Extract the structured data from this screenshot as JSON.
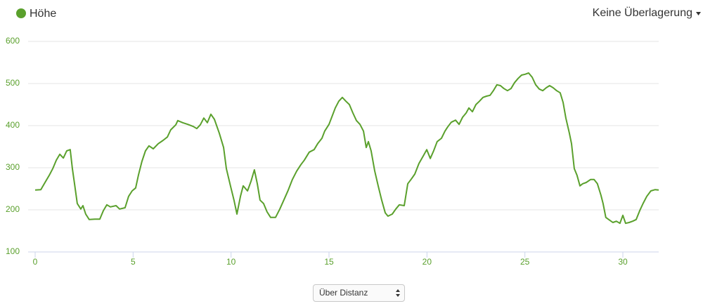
{
  "chart_data": {
    "type": "line",
    "x": [
      0,
      0.29,
      0.54,
      0.72,
      0.9,
      1.08,
      1.26,
      1.44,
      1.61,
      1.79,
      1.9,
      2.01,
      2.15,
      2.33,
      2.44,
      2.58,
      2.76,
      3.05,
      3.3,
      3.48,
      3.66,
      3.84,
      4.13,
      4.31,
      4.59,
      4.77,
      4.95,
      5.13,
      5.27,
      5.45,
      5.63,
      5.81,
      6.03,
      6.28,
      6.53,
      6.75,
      6.92,
      7.18,
      7.28,
      7.53,
      7.79,
      8.07,
      8.25,
      8.43,
      8.61,
      8.79,
      8.97,
      9.15,
      9.4,
      9.62,
      9.76,
      9.97,
      10.15,
      10.3,
      10.48,
      10.62,
      10.84,
      11.02,
      11.19,
      11.34,
      11.48,
      11.66,
      11.84,
      12.02,
      12.27,
      12.49,
      12.74,
      12.92,
      13.13,
      13.35,
      13.56,
      13.74,
      13.99,
      14.24,
      14.42,
      14.64,
      14.78,
      15.0,
      15.14,
      15.32,
      15.5,
      15.68,
      15.86,
      16.04,
      16.22,
      16.4,
      16.58,
      16.76,
      16.9,
      17.01,
      17.15,
      17.33,
      17.51,
      17.69,
      17.87,
      18.01,
      18.23,
      18.41,
      18.59,
      18.84,
      19.02,
      19.2,
      19.38,
      19.59,
      19.81,
      19.99,
      20.17,
      20.34,
      20.52,
      20.74,
      20.92,
      21.06,
      21.24,
      21.46,
      21.64,
      21.82,
      22.0,
      22.14,
      22.32,
      22.5,
      22.68,
      22.86,
      23.04,
      23.22,
      23.39,
      23.57,
      23.75,
      23.93,
      24.11,
      24.29,
      24.47,
      24.65,
      24.83,
      25.01,
      25.19,
      25.37,
      25.55,
      25.73,
      25.91,
      26.09,
      26.26,
      26.44,
      26.62,
      26.8,
      26.95,
      27.09,
      27.27,
      27.38,
      27.52,
      27.66,
      27.81,
      27.95,
      28.13,
      28.35,
      28.53,
      28.7,
      28.88,
      28.99,
      29.13,
      29.28,
      29.49,
      29.67,
      29.85,
      30.0,
      30.14,
      30.32,
      30.5,
      30.68,
      30.86,
      31.03,
      31.22,
      31.43,
      31.65,
      31.83
    ],
    "series": [
      {
        "name": "Höhe",
        "color": "#5aa02c",
        "values": [
          247,
          248,
          268,
          282,
          298,
          318,
          332,
          323,
          340,
          343,
          298,
          262,
          215,
          202,
          210,
          190,
          177,
          178,
          178,
          198,
          212,
          207,
          210,
          202,
          205,
          232,
          245,
          252,
          282,
          315,
          340,
          352,
          345,
          357,
          365,
          373,
          390,
          402,
          412,
          407,
          403,
          398,
          393,
          402,
          418,
          407,
          427,
          415,
          382,
          348,
          298,
          257,
          223,
          190,
          232,
          257,
          245,
          268,
          295,
          262,
          223,
          215,
          195,
          182,
          182,
          202,
          228,
          247,
          272,
          292,
          307,
          318,
          337,
          343,
          357,
          370,
          387,
          403,
          420,
          442,
          458,
          467,
          458,
          450,
          430,
          412,
          403,
          387,
          348,
          362,
          340,
          293,
          257,
          223,
          193,
          185,
          190,
          202,
          212,
          210,
          262,
          273,
          285,
          310,
          328,
          343,
          322,
          340,
          362,
          370,
          387,
          397,
          408,
          413,
          403,
          420,
          430,
          442,
          433,
          450,
          458,
          467,
          470,
          472,
          483,
          497,
          495,
          488,
          483,
          488,
          502,
          512,
          520,
          522,
          525,
          515,
          497,
          487,
          483,
          490,
          495,
          490,
          483,
          478,
          455,
          418,
          382,
          357,
          298,
          282,
          257,
          262,
          265,
          272,
          272,
          262,
          235,
          215,
          182,
          177,
          170,
          173,
          168,
          187,
          168,
          170,
          173,
          177,
          198,
          215,
          232,
          245,
          248,
          247
        ]
      }
    ],
    "xlim": [
      0,
      31.83
    ],
    "xticks": [
      0,
      5,
      10,
      15,
      20,
      25,
      30
    ],
    "ylim": [
      100,
      600
    ],
    "yticks": [
      100,
      200,
      300,
      400,
      500,
      600
    ],
    "grid": true
  },
  "ui": {
    "overlay": "Keine Überlagerung",
    "x_mode": "Über Distanz"
  }
}
